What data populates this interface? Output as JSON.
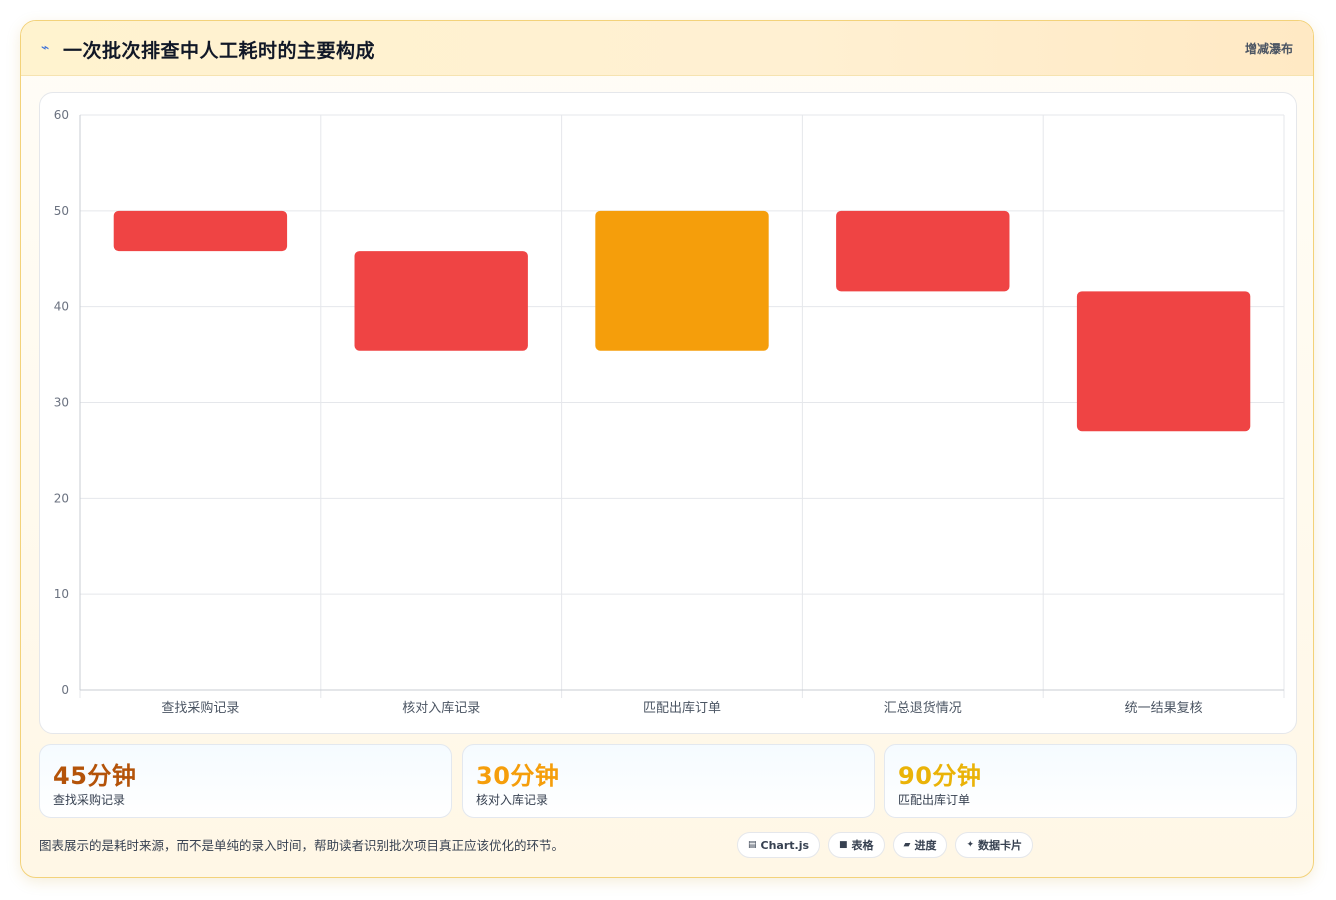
{
  "header": {
    "icon": "lightning-icon",
    "title": "一次批次排查中人工耗时的主要构成",
    "chart_type_label": "增减瀑布"
  },
  "colors": {
    "negative": "#ef4444",
    "highlight": "#f59e0b",
    "grid": "#e5e7eb",
    "axis_text": "#6b7280"
  },
  "chart_data": {
    "type": "bar",
    "subtype": "waterfall",
    "title": "",
    "xlabel": "",
    "ylabel": "",
    "ylim": [
      0,
      60
    ],
    "yticks": [
      0,
      10,
      20,
      30,
      40,
      50,
      60
    ],
    "grid": true,
    "legend": "none",
    "categories": [
      "查找采购记录",
      "核对入库记录",
      "匹配出库订单",
      "汇总退货情况",
      "统一结果复核"
    ],
    "bars": [
      {
        "category": "查找采购记录",
        "low": 45.8,
        "high": 50,
        "color": "negative"
      },
      {
        "category": "核对入库记录",
        "low": 35.4,
        "high": 45.8,
        "color": "negative"
      },
      {
        "category": "匹配出库订单",
        "low": 35.4,
        "high": 50,
        "color": "highlight"
      },
      {
        "category": "汇总退货情况",
        "low": 41.6,
        "high": 50,
        "color": "negative"
      },
      {
        "category": "统一结果复核",
        "low": 27.0,
        "high": 41.6,
        "color": "negative"
      }
    ]
  },
  "stats": [
    {
      "value": "45分钟",
      "label": "查找采购记录",
      "color": "#b45309"
    },
    {
      "value": "30分钟",
      "label": "核对入库记录",
      "color": "#f59e0b"
    },
    {
      "value": "90分钟",
      "label": "匹配出库订单",
      "color": "#eab308"
    }
  ],
  "footnote": "图表展示的是耗时来源，而不是单纯的录入时间，帮助读者识别批次项目真正应该优化的环节。",
  "badges": [
    {
      "icon": "chart-icon",
      "glyph": "▤",
      "label": "Chart.js"
    },
    {
      "icon": "table-icon",
      "glyph": "■",
      "label": "表格"
    },
    {
      "icon": "progress-icon",
      "glyph": "▰",
      "label": "进度"
    },
    {
      "icon": "sparkle-icon",
      "glyph": "✦",
      "label": "数据卡片"
    }
  ]
}
